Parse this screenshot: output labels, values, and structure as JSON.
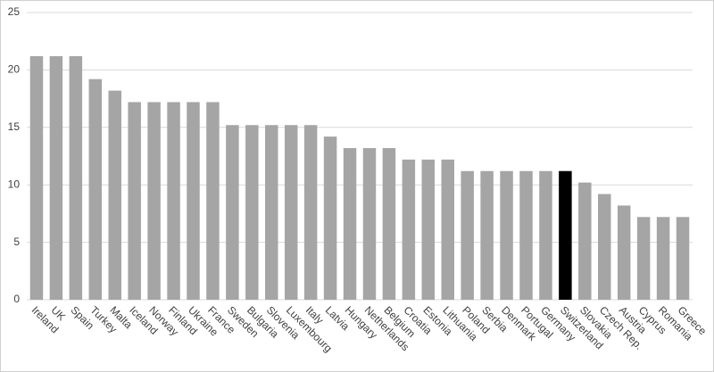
{
  "chart_data": {
    "type": "bar",
    "categories": [
      "Ireland",
      "UK",
      "Spain",
      "Turkey",
      "Malta",
      "Iceland",
      "Norway",
      "Finland",
      "Ukraine",
      "France",
      "Sweden",
      "Bulgaria",
      "Slovenia",
      "Luxembourg",
      "Italy",
      "Latvia",
      "Hungary",
      "Netherlands",
      "Belgium",
      "Croatia",
      "Estonia",
      "Lithuania",
      "Poland",
      "Serbia",
      "Denmark",
      "Portugal",
      "Germany",
      "Switzerland",
      "Slovakia",
      "Czech Rep.",
      "Austria",
      "Cyprus",
      "Romania",
      "Greece"
    ],
    "values": [
      21.2,
      21.2,
      21.2,
      19.2,
      18.2,
      17.2,
      17.2,
      17.2,
      17.2,
      17.2,
      15.2,
      15.2,
      15.2,
      15.2,
      15.2,
      14.2,
      13.2,
      13.2,
      13.2,
      12.2,
      12.2,
      12.2,
      11.2,
      11.2,
      11.2,
      11.2,
      11.2,
      11.2,
      10.2,
      9.2,
      8.2,
      7.2,
      7.2,
      7.2
    ],
    "colors": [
      "#a5a5a5",
      "#a5a5a5",
      "#a5a5a5",
      "#a5a5a5",
      "#a5a5a5",
      "#a5a5a5",
      "#a5a5a5",
      "#a5a5a5",
      "#a5a5a5",
      "#a5a5a5",
      "#a5a5a5",
      "#a5a5a5",
      "#a5a5a5",
      "#a5a5a5",
      "#a5a5a5",
      "#a5a5a5",
      "#a5a5a5",
      "#a5a5a5",
      "#a5a5a5",
      "#a5a5a5",
      "#a5a5a5",
      "#a5a5a5",
      "#a5a5a5",
      "#a5a5a5",
      "#a5a5a5",
      "#a5a5a5",
      "#a5a5a5",
      "#000000",
      "#a5a5a5",
      "#a5a5a5",
      "#a5a5a5",
      "#a5a5a5",
      "#a5a5a5",
      "#a5a5a5"
    ],
    "ylim": [
      0,
      25
    ],
    "yticks": [
      0,
      5,
      10,
      15,
      20,
      25
    ],
    "grid": true
  }
}
